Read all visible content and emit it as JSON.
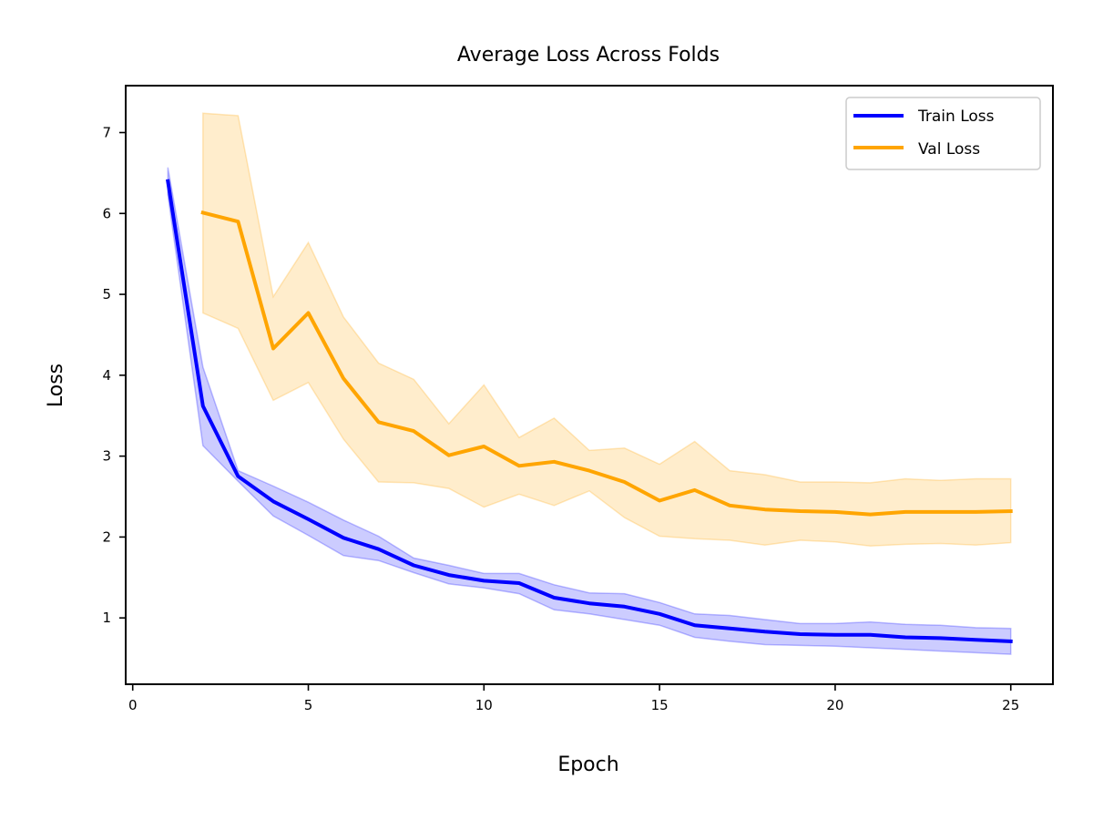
{
  "chart_data": {
    "type": "line",
    "title": "Average Loss Across Folds",
    "xlabel": "Epoch",
    "ylabel": "Loss",
    "xlim": [
      -0.2,
      26.2
    ],
    "ylim": [
      0.18,
      7.58
    ],
    "xticks": [
      0,
      5,
      10,
      15,
      20,
      25
    ],
    "yticks": [
      1,
      2,
      3,
      4,
      5,
      6,
      7
    ],
    "grid": false,
    "legend_position": "top-right",
    "series": [
      {
        "name": "Train Loss",
        "color": "#0000ff",
        "x": [
          1,
          2,
          3,
          4,
          5,
          6,
          7,
          8,
          9,
          10,
          11,
          12,
          13,
          14,
          15,
          16,
          17,
          18,
          19,
          20,
          21,
          22,
          23,
          24,
          25
        ],
        "values": [
          6.4,
          3.62,
          2.75,
          2.44,
          2.22,
          1.99,
          1.85,
          1.65,
          1.53,
          1.46,
          1.43,
          1.25,
          1.18,
          1.14,
          1.05,
          0.91,
          0.87,
          0.83,
          0.8,
          0.79,
          0.79,
          0.76,
          0.75,
          0.73,
          0.71
        ],
        "upper": [
          6.57,
          4.1,
          2.82,
          2.63,
          2.43,
          2.21,
          2.01,
          1.74,
          1.65,
          1.55,
          1.55,
          1.41,
          1.31,
          1.3,
          1.19,
          1.05,
          1.03,
          0.98,
          0.93,
          0.93,
          0.95,
          0.92,
          0.91,
          0.88,
          0.87
        ],
        "lower": [
          6.23,
          3.13,
          2.69,
          2.26,
          2.02,
          1.77,
          1.71,
          1.56,
          1.42,
          1.37,
          1.3,
          1.1,
          1.05,
          0.98,
          0.91,
          0.76,
          0.71,
          0.67,
          0.66,
          0.65,
          0.63,
          0.61,
          0.59,
          0.57,
          0.55
        ]
      },
      {
        "name": "Val Loss",
        "color": "#ffa500",
        "x": [
          2,
          3,
          4,
          5,
          6,
          7,
          8,
          9,
          10,
          11,
          12,
          13,
          14,
          15,
          16,
          17,
          18,
          19,
          20,
          21,
          22,
          23,
          24,
          25
        ],
        "values": [
          6.01,
          5.9,
          4.33,
          4.77,
          3.96,
          3.42,
          3.31,
          3.01,
          3.12,
          2.88,
          2.93,
          2.82,
          2.68,
          2.45,
          2.58,
          2.39,
          2.34,
          2.32,
          2.31,
          2.28,
          2.31,
          2.31,
          2.31,
          2.32
        ],
        "upper": [
          7.24,
          7.21,
          4.97,
          5.64,
          4.72,
          4.15,
          3.95,
          3.4,
          3.88,
          3.23,
          3.47,
          3.07,
          3.1,
          2.9,
          3.18,
          2.82,
          2.77,
          2.68,
          2.68,
          2.67,
          2.72,
          2.7,
          2.72,
          2.72
        ],
        "lower": [
          4.77,
          4.58,
          3.69,
          3.91,
          3.21,
          2.68,
          2.67,
          2.6,
          2.37,
          2.53,
          2.39,
          2.57,
          2.24,
          2.01,
          1.98,
          1.96,
          1.9,
          1.96,
          1.94,
          1.89,
          1.91,
          1.92,
          1.9,
          1.93
        ]
      }
    ]
  }
}
